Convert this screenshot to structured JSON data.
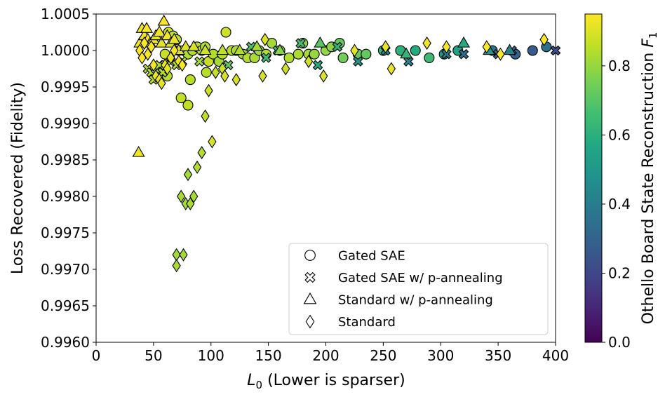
{
  "chart_data": {
    "type": "scatter",
    "xlabel_var": "L",
    "xlabel_sub": "0",
    "xlabel_rest": " (Lower is sparser)",
    "ylabel": "Loss Recovered (Fidelity)",
    "colorbar_label_main": "Othello Board State Reconstruction ",
    "colorbar_label_var": "F",
    "colorbar_label_sub": "1",
    "xlim": [
      0,
      400
    ],
    "ylim": [
      0.996,
      1.0005
    ],
    "xticks": [
      0,
      50,
      100,
      150,
      200,
      250,
      300,
      350,
      400
    ],
    "xtick_labels": [
      "0",
      "50",
      "100",
      "150",
      "200",
      "250",
      "300",
      "350",
      "400"
    ],
    "yticks": [
      0.996,
      0.9965,
      0.997,
      0.9975,
      0.998,
      0.9985,
      0.999,
      0.9995,
      1.0,
      1.0005
    ],
    "ytick_labels": [
      "0.9960",
      "0.9965",
      "0.9970",
      "0.9975",
      "0.9980",
      "0.9985",
      "0.9990",
      "0.9995",
      "1.0000",
      "1.0005"
    ],
    "color_range": [
      0,
      0.95
    ],
    "colorbar_ticks": [
      0.0,
      0.2,
      0.4,
      0.6,
      0.8
    ],
    "colorbar_tick_labels": [
      "0.0",
      "0.2",
      "0.4",
      "0.6",
      "0.8"
    ],
    "legend_position": "lower-right",
    "series": [
      {
        "name": "Gated SAE",
        "marker": "circle",
        "points": [
          [
            63,
            1.00025,
            0.88
          ],
          [
            67,
            1.0002,
            0.86
          ],
          [
            70,
            1.00015,
            0.85
          ],
          [
            60,
            0.99995,
            0.87
          ],
          [
            72,
            1.0,
            0.85
          ],
          [
            76,
            1.0,
            0.86
          ],
          [
            80,
            0.99995,
            0.84
          ],
          [
            84,
            1.0,
            0.84
          ],
          [
            88,
            1.00005,
            0.85
          ],
          [
            92,
            1.0,
            0.86
          ],
          [
            95,
            1.00005,
            0.84
          ],
          [
            98,
            0.99985,
            0.87
          ],
          [
            102,
            0.99995,
            0.84
          ],
          [
            107,
            0.99985,
            0.82
          ],
          [
            110,
            0.99995,
            0.85
          ],
          [
            113,
            1.00025,
            0.88
          ],
          [
            118,
            1.0,
            0.85
          ],
          [
            122,
            1.0,
            0.83
          ],
          [
            128,
            0.99995,
            0.83
          ],
          [
            132,
            0.9999,
            0.84
          ],
          [
            138,
            0.9999,
            0.83
          ],
          [
            142,
            1.0,
            0.82
          ],
          [
            148,
            0.99995,
            0.84
          ],
          [
            153,
            1.0001,
            0.82
          ],
          [
            160,
            1.0,
            0.82
          ],
          [
            168,
            0.9999,
            0.84
          ],
          [
            176,
            0.99995,
            0.83
          ],
          [
            180,
            1.0001,
            0.78
          ],
          [
            185,
            0.99995,
            0.82
          ],
          [
            190,
            0.99995,
            0.8
          ],
          [
            200,
            1.0,
            0.8
          ],
          [
            205,
            1.00005,
            0.79
          ],
          [
            212,
            1.0001,
            0.72
          ],
          [
            215,
            0.9999,
            0.74
          ],
          [
            228,
            0.99995,
            0.73
          ],
          [
            235,
            0.99995,
            0.72
          ],
          [
            250,
            1.0,
            0.62
          ],
          [
            265,
            1.0,
            0.6
          ],
          [
            278,
            1.0,
            0.58
          ],
          [
            290,
            0.9999,
            0.64
          ],
          [
            303,
            0.99995,
            0.52
          ],
          [
            315,
            1.0,
            0.55
          ],
          [
            345,
            1.0,
            0.38
          ],
          [
            365,
            0.99995,
            0.3
          ],
          [
            380,
            1.0,
            0.27
          ],
          [
            392,
            1.00005,
            0.35
          ],
          [
            74,
            0.99935,
            0.86
          ],
          [
            80,
            0.99925,
            0.86
          ],
          [
            62,
            0.99965,
            0.85
          ],
          [
            96,
            0.9997,
            0.85
          ],
          [
            82,
            0.9996,
            0.85
          ]
        ]
      },
      {
        "name": "Gated SAE w/ p-annealing",
        "marker": "cross",
        "points": [
          [
            45,
            0.99975,
            0.84
          ],
          [
            48,
            0.9997,
            0.85
          ],
          [
            50,
            0.9996,
            0.84
          ],
          [
            52,
            0.99975,
            0.82
          ],
          [
            55,
            0.9998,
            0.83
          ],
          [
            58,
            0.9997,
            0.84
          ],
          [
            60,
            0.9998,
            0.84
          ],
          [
            65,
            0.99985,
            0.83
          ],
          [
            70,
            0.9998,
            0.85
          ],
          [
            75,
            0.99985,
            0.84
          ],
          [
            90,
            0.99985,
            0.82
          ],
          [
            115,
            0.9998,
            0.72
          ],
          [
            135,
            1.00005,
            0.68
          ],
          [
            148,
            0.9999,
            0.65
          ],
          [
            158,
            1.0,
            0.66
          ],
          [
            178,
            1.0001,
            0.66
          ],
          [
            193,
            0.9998,
            0.58
          ],
          [
            210,
            1.00005,
            0.62
          ],
          [
            228,
            0.99985,
            0.48
          ],
          [
            252,
            1.0,
            0.45
          ],
          [
            272,
            0.99985,
            0.42
          ],
          [
            305,
            0.99995,
            0.38
          ],
          [
            320,
            0.99995,
            0.35
          ],
          [
            350,
            0.99995,
            0.33
          ],
          [
            362,
            1.0,
            0.3
          ],
          [
            400,
            1.0,
            0.22
          ]
        ]
      },
      {
        "name": "Standard w/ p-annealing",
        "marker": "triangle",
        "points": [
          [
            37,
            0.9986,
            0.93
          ],
          [
            38,
            1.0001,
            0.93
          ],
          [
            40,
            1.0003,
            0.93
          ],
          [
            42,
            1.0002,
            0.93
          ],
          [
            44,
            1.0003,
            0.94
          ],
          [
            45,
            1.00015,
            0.94
          ],
          [
            47,
            1.0001,
            0.92
          ],
          [
            50,
            1.00015,
            0.93
          ],
          [
            52,
            1.0002,
            0.92
          ],
          [
            55,
            1.00025,
            0.93
          ],
          [
            57,
            1.0001,
            0.91
          ],
          [
            59,
            1.0004,
            0.94
          ],
          [
            62,
            1.0002,
            0.93
          ],
          [
            65,
            1.0001,
            0.9
          ],
          [
            68,
            1.00015,
            0.92
          ],
          [
            72,
            1.0,
            0.91
          ],
          [
            78,
            1.00005,
            0.9
          ],
          [
            85,
            1.00005,
            0.89
          ],
          [
            95,
            1.0,
            0.88
          ],
          [
            110,
            1.0,
            0.86
          ],
          [
            125,
            1.0,
            0.84
          ],
          [
            140,
            1.00005,
            0.82
          ],
          [
            160,
            1.0,
            0.78
          ],
          [
            195,
            1.0001,
            0.7
          ],
          [
            270,
            0.99995,
            0.62
          ],
          [
            320,
            1.0001,
            0.58
          ],
          [
            342,
            1.0,
            0.5
          ],
          [
            360,
            1.0,
            0.42
          ]
        ]
      },
      {
        "name": "Standard",
        "marker": "diamond",
        "points": [
          [
            38,
            1.0,
            0.95
          ],
          [
            40,
            0.9999,
            0.95
          ],
          [
            42,
            1.0001,
            0.95
          ],
          [
            45,
            0.99995,
            0.94
          ],
          [
            48,
            1.00005,
            0.94
          ],
          [
            50,
            0.9998,
            0.93
          ],
          [
            52,
            0.99965,
            0.92
          ],
          [
            55,
            0.9996,
            0.92
          ],
          [
            57,
            0.99955,
            0.91
          ],
          [
            60,
            0.9998,
            0.92
          ],
          [
            62,
            0.99975,
            0.91
          ],
          [
            65,
            0.9999,
            0.92
          ],
          [
            68,
            1.0,
            0.93
          ],
          [
            72,
            0.99985,
            0.93
          ],
          [
            75,
            0.9998,
            0.94
          ],
          [
            70,
            0.9972,
            0.82
          ],
          [
            76,
            0.9972,
            0.82
          ],
          [
            70,
            0.99705,
            0.83
          ],
          [
            74,
            0.998,
            0.83
          ],
          [
            78,
            0.9979,
            0.82
          ],
          [
            80,
            0.9983,
            0.82
          ],
          [
            82,
            0.9979,
            0.83
          ],
          [
            85,
            0.998,
            0.82
          ],
          [
            88,
            0.9984,
            0.84
          ],
          [
            92,
            0.9986,
            0.84
          ],
          [
            95,
            0.9991,
            0.86
          ],
          [
            98,
            0.99945,
            0.88
          ],
          [
            101,
            0.99875,
            0.89
          ],
          [
            104,
            0.9997,
            0.87
          ],
          [
            110,
            0.99975,
            0.88
          ],
          [
            112,
            0.99965,
            0.89
          ],
          [
            122,
            0.9996,
            0.89
          ],
          [
            145,
            0.99965,
            0.89
          ],
          [
            147,
            1.00015,
            0.9
          ],
          [
            165,
            0.99975,
            0.88
          ],
          [
            185,
            0.99985,
            0.88
          ],
          [
            198,
            0.99965,
            0.9
          ],
          [
            225,
            1.0,
            0.91
          ],
          [
            252,
            1.00005,
            0.92
          ],
          [
            257,
            0.99975,
            0.92
          ],
          [
            288,
            1.0001,
            0.93
          ],
          [
            305,
            1.00005,
            0.94
          ],
          [
            340,
            1.00005,
            0.95
          ],
          [
            352,
            0.99995,
            0.95
          ],
          [
            390,
            1.00015,
            0.95
          ]
        ]
      }
    ]
  }
}
